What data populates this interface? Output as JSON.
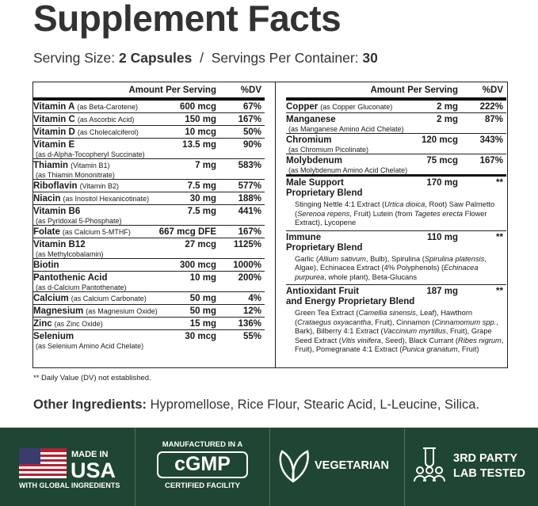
{
  "header": {
    "title": "Supplement Facts",
    "serving_size_label": "Serving Size:",
    "serving_size": "2 Capsules",
    "separator": "/",
    "servings_label": "Servings Per Container:",
    "servings": "30"
  },
  "facts": {
    "left": {
      "amount_header": "Amount Per Serving",
      "dv_header": "%DV",
      "rows": [
        {
          "name": "Vitamin A",
          "source": "(as Beta-Carotene)",
          "amount": "600 mcg",
          "dv": "67%"
        },
        {
          "name": "Vitamin C",
          "source": "(as Ascorbic Acid)",
          "amount": "150 mg",
          "dv": "167%"
        },
        {
          "name": "Vitamin D",
          "source": "(as Cholecalciferol)",
          "amount": "10 mcg",
          "dv": "50%"
        },
        {
          "name": "Vitamin E",
          "source_below": "(as d-Alpha-Tocopheryl Succinate)",
          "amount": "13.5 mg",
          "dv": "90%"
        },
        {
          "name": "Thiamin",
          "source": "(Vitamin B1)",
          "source_below": "(as Thiamin Mononitrate)",
          "amount": "7 mg",
          "dv": "583%"
        },
        {
          "name": "Riboflavin",
          "source": "(Vitamin B2)",
          "amount": "7.5 mg",
          "dv": "577%"
        },
        {
          "name": "Niacin",
          "source": "(as Inositol Hexanicotinate)",
          "amount": "30 mg",
          "dv": "188%"
        },
        {
          "name": "Vitamin B6",
          "source_below": "(as Pyridoxal 5-Phosphate)",
          "amount": "7.5 mg",
          "dv": "441%"
        },
        {
          "name": "Folate",
          "source": "(as Calcium 5-MTHF)",
          "amount": "667 mcg DFE",
          "dv": "167%"
        },
        {
          "name": "Vitamin B12",
          "source_below": "(as Methylcobalamin)",
          "amount": "27 mcg",
          "dv": "1125%"
        },
        {
          "name": "Biotin",
          "amount": "300 mcg",
          "dv": "1000%"
        },
        {
          "name": "Pantothenic Acid",
          "source_below": "(as d-Calcium Pantothenate)",
          "amount": "10 mg",
          "dv": "200%"
        },
        {
          "name": "Calcium",
          "source": "(as Calcium Carbonate)",
          "amount": "50 mg",
          "dv": "4%"
        },
        {
          "name": "Magnesium",
          "source": "(as Magnesium Oxide)",
          "amount": "50 mg",
          "dv": "12%"
        },
        {
          "name": "Zinc",
          "source": "(as Zinc Oxide)",
          "amount": "15 mg",
          "dv": "136%"
        },
        {
          "name": "Selenium",
          "source_below": "(as Selenium Amino Acid Chelate)",
          "amount": "30 mcg",
          "dv": "55%"
        }
      ]
    },
    "right": {
      "amount_header": "Amount Per Serving",
      "dv_header": "%DV",
      "rows": [
        {
          "name": "Copper",
          "source": "(as Copper Gluconate)",
          "amount": "2 mg",
          "dv": "222%"
        },
        {
          "name": "Manganese",
          "source_below": "(as Manganese Amino Acid Chelate)",
          "amount": "2 mg",
          "dv": "87%"
        },
        {
          "name": "Chromium",
          "source_below": "(as Chromium Picolinate)",
          "amount": "120 mcg",
          "dv": "343%"
        },
        {
          "name": "Molybdenum",
          "source_below": "(as Molybdenum Amino Acid Chelate)",
          "amount": "75 mcg",
          "dv": "167%"
        }
      ],
      "blends": [
        {
          "name_lines": [
            "Male Support",
            "Proprietary Blend"
          ],
          "amount": "170 mg",
          "dv": "**",
          "description": [
            "Stinging Nettle 4:1 Extract (",
            "Urtica dioica",
            ", Root) Saw Palmetto (",
            "Serenoa repens",
            ", Fruit) Lutein (from ",
            "Tagetes erecta",
            " Flower Extract), Lycopene"
          ]
        },
        {
          "name_lines": [
            "Immune",
            "Proprietary Blend"
          ],
          "amount": "110 mg",
          "dv": "**",
          "description": [
            "Garlic (",
            "Allium sativum",
            ", Bulb), Spirulina (",
            "Spirulina platensis",
            ", Algae), Echinacea Extract (4% Polyphenols) (",
            "Echinacea purpurea",
            ", whole plant), Beta-Glucans"
          ]
        },
        {
          "name_lines": [
            "Antioxidant Fruit",
            "and Energy Proprietary Blend"
          ],
          "amount": "187 mg",
          "dv": "**",
          "description": [
            "Green Tea Extract (",
            "Camellia sinensis",
            ", Leaf), Hawthorn (",
            "Crataegus oxyacantha",
            ", Fruit), Cinnamon (",
            "Cinnamomum spp.",
            ", Bark), Bilberry 4:1 Extract (",
            "Vaccinium myrtillus",
            ", Fruit), Grape Seed Extract (",
            "Vitis vinifera",
            ", Seed), Black Currant (",
            "Ribes nigrum",
            ", Fruit), Pomegranate 4:1 Extract (",
            "Punica granatum",
            ", Fruit)"
          ]
        }
      ]
    }
  },
  "footnote": "** Daily Value (DV) not established.",
  "other_ingredients": {
    "label": "Other Ingredients:",
    "text": "Hypromellose, Rice Flour, Stearic Acid, L-Leucine, Silica."
  },
  "badges": [
    {
      "lines": [
        "MADE IN",
        "USA",
        "WITH GLOBAL INGREDIENTS"
      ]
    },
    {
      "lines": [
        "MANUFACTURED IN A",
        "cGMP",
        "CERTIFIED FACILITY"
      ]
    },
    {
      "lines": [
        "VEGETARIAN"
      ]
    },
    {
      "lines": [
        "3RD PARTY",
        "LAB TESTED"
      ]
    }
  ]
}
